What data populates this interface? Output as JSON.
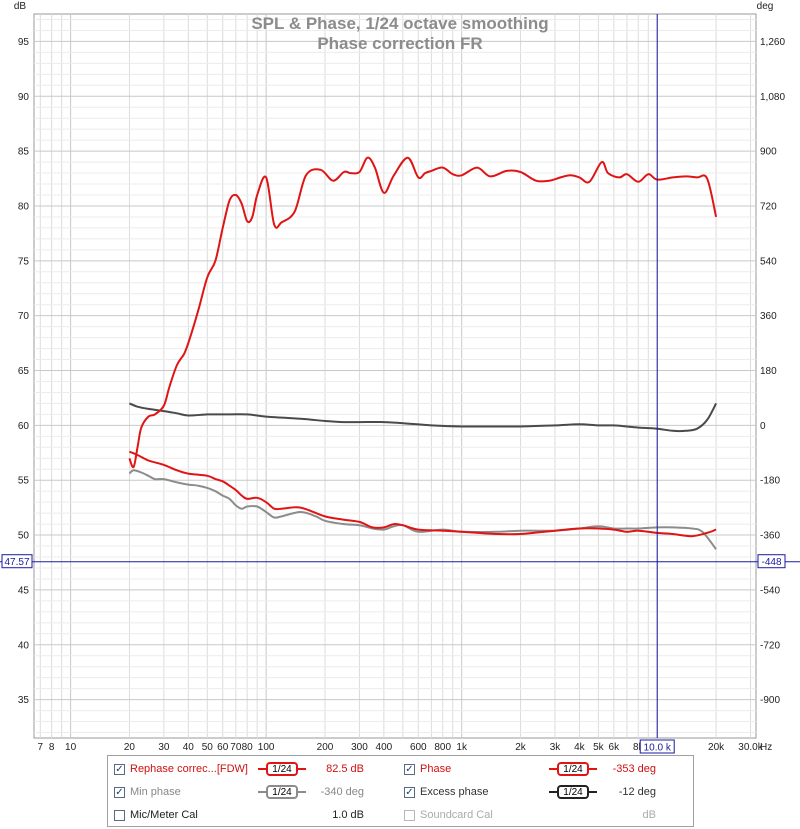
{
  "chart_data": {
    "type": "line",
    "title": "SPL & Phase, 1/24 octave smoothing",
    "subtitle": "Phase correction FR",
    "left_unit": "dB",
    "right_unit": "deg",
    "x_unit": "Hz",
    "x_scale": "log",
    "xlim": [
      6.5,
      32000
    ],
    "ylim_left": [
      31.5,
      97.5
    ],
    "ylim_right": [
      -1026,
      1350
    ],
    "x_ticks": [
      {
        "v": 7,
        "t": "7"
      },
      {
        "v": 8,
        "t": "8"
      },
      {
        "v": 10,
        "t": "10"
      },
      {
        "v": 20,
        "t": "20"
      },
      {
        "v": 30,
        "t": "30"
      },
      {
        "v": 40,
        "t": "40"
      },
      {
        "v": 50,
        "t": "50"
      },
      {
        "v": 60,
        "t": "60"
      },
      {
        "v": 70,
        "t": "70"
      },
      {
        "v": 80,
        "t": "80"
      },
      {
        "v": 100,
        "t": "100"
      },
      {
        "v": 200,
        "t": "200"
      },
      {
        "v": 300,
        "t": "300"
      },
      {
        "v": 400,
        "t": "400"
      },
      {
        "v": 600,
        "t": "600"
      },
      {
        "v": 800,
        "t": "800"
      },
      {
        "v": 1000,
        "t": "1k"
      },
      {
        "v": 2000,
        "t": "2k"
      },
      {
        "v": 3000,
        "t": "3k"
      },
      {
        "v": 4000,
        "t": "4k"
      },
      {
        "v": 5000,
        "t": "5k"
      },
      {
        "v": 6000,
        "t": "6k"
      },
      {
        "v": 8000,
        "t": "8k"
      },
      {
        "v": 20000,
        "t": "20k"
      },
      {
        "v": 30000,
        "t": "30.0k"
      }
    ],
    "y_ticks_left": [
      "35",
      "40",
      "45",
      "50",
      "55",
      "60",
      "65",
      "70",
      "75",
      "80",
      "85",
      "90",
      "95"
    ],
    "y_ticks_right": [
      "-900",
      "-720",
      "-540",
      "-360",
      "-180",
      "0",
      "180",
      "360",
      "540",
      "720",
      "900",
      "1,080",
      "1,260"
    ],
    "cursor": {
      "x": 10000,
      "x_label": "10.0 k",
      "y_left": 47.57,
      "y_left_label": "47.57",
      "y_right_label": "-448"
    },
    "series": [
      {
        "name": "Rephase correc...[FDW]",
        "axis": "left",
        "color": "#e01414",
        "x": [
          20,
          21,
          22,
          23,
          25,
          27,
          30,
          32,
          35,
          38,
          40,
          45,
          50,
          55,
          60,
          65,
          70,
          75,
          80,
          85,
          90,
          100,
          110,
          120,
          140,
          160,
          190,
          220,
          250,
          270,
          300,
          330,
          360,
          400,
          450,
          530,
          600,
          650,
          700,
          800,
          900,
          1000,
          1200,
          1400,
          1700,
          2000,
          2400,
          2800,
          3200,
          3600,
          4000,
          4500,
          5200,
          5600,
          6400,
          7000,
          8000,
          9000,
          10000,
          12000,
          14000,
          16000,
          18000,
          20000
        ],
        "y": [
          57.0,
          56.2,
          58.0,
          59.8,
          60.8,
          61.0,
          61.8,
          63.5,
          65.5,
          66.5,
          67.5,
          70.5,
          73.5,
          75.0,
          78.0,
          80.5,
          81.0,
          80.2,
          78.6,
          79.0,
          81.0,
          82.6,
          78.3,
          78.5,
          79.5,
          82.8,
          83.3,
          82.3,
          83.1,
          83.0,
          83.1,
          84.4,
          83.5,
          81.2,
          82.8,
          84.4,
          82.6,
          83.0,
          83.2,
          83.5,
          82.9,
          82.8,
          83.5,
          82.7,
          83.2,
          83.1,
          82.3,
          82.3,
          82.6,
          82.8,
          82.6,
          82.2,
          84.0,
          83.0,
          82.6,
          82.9,
          82.2,
          82.9,
          82.4,
          82.6,
          82.7,
          82.6,
          82.5,
          79.0
        ]
      },
      {
        "name": "Phase",
        "axis": "left",
        "color": "#e01414",
        "x": [
          20,
          22,
          25,
          30,
          35,
          40,
          50,
          55,
          60,
          65,
          70,
          75,
          80,
          90,
          100,
          110,
          120,
          150,
          200,
          250,
          300,
          350,
          400,
          450,
          500,
          600,
          800,
          1000,
          1500,
          2000,
          3000,
          4000,
          5000,
          6000,
          7000,
          8000,
          10000,
          12000,
          15000,
          18000,
          20000
        ],
        "y": [
          57.6,
          57.3,
          56.8,
          56.4,
          55.9,
          55.6,
          55.4,
          55.1,
          54.9,
          54.5,
          54.1,
          53.6,
          53.3,
          53.4,
          53.0,
          52.4,
          52.4,
          52.5,
          51.7,
          51.4,
          51.2,
          50.7,
          50.7,
          51.0,
          50.9,
          50.5,
          50.4,
          50.3,
          50.1,
          50.1,
          50.4,
          50.6,
          50.6,
          50.5,
          50.3,
          50.4,
          50.2,
          50.1,
          49.9,
          50.2,
          50.5
        ]
      },
      {
        "name": "Min phase",
        "axis": "left",
        "color": "#8c8c8c",
        "x": [
          20,
          21,
          23,
          25,
          27,
          30,
          35,
          40,
          45,
          50,
          55,
          60,
          65,
          70,
          75,
          80,
          90,
          100,
          110,
          120,
          150,
          180,
          200,
          250,
          300,
          350,
          400,
          450,
          500,
          600,
          800,
          1000,
          1500,
          2000,
          3000,
          4000,
          5000,
          6000,
          7000,
          8000,
          10000,
          12000,
          15000,
          17000,
          20000
        ],
        "y": [
          55.6,
          55.9,
          55.7,
          55.4,
          55.1,
          55.1,
          54.8,
          54.6,
          54.5,
          54.3,
          54.0,
          53.6,
          53.3,
          52.7,
          52.4,
          52.6,
          52.6,
          52.1,
          51.6,
          51.7,
          52.1,
          51.7,
          51.3,
          51.0,
          50.9,
          50.6,
          50.5,
          50.8,
          50.9,
          50.3,
          50.5,
          50.3,
          50.3,
          50.4,
          50.4,
          50.6,
          50.8,
          50.6,
          50.6,
          50.6,
          50.7,
          50.7,
          50.6,
          50.3,
          48.7
        ]
      },
      {
        "name": "Excess phase",
        "axis": "left",
        "color": "#4a4a4a",
        "x": [
          20,
          22,
          25,
          30,
          35,
          40,
          50,
          60,
          80,
          100,
          150,
          200,
          250,
          300,
          400,
          500,
          700,
          1000,
          1500,
          2000,
          3000,
          4000,
          5000,
          6000,
          7000,
          8000,
          10000,
          12000,
          14000,
          16000,
          18000,
          20000
        ],
        "y": [
          62.0,
          61.7,
          61.5,
          61.3,
          61.1,
          60.9,
          61.0,
          61.0,
          61.0,
          60.8,
          60.6,
          60.4,
          60.3,
          60.3,
          60.3,
          60.2,
          60.0,
          59.9,
          59.9,
          59.9,
          60.0,
          60.1,
          60.0,
          60.0,
          59.9,
          59.8,
          59.7,
          59.5,
          59.5,
          59.7,
          60.5,
          62.0
        ]
      }
    ]
  },
  "legend": {
    "row1": {
      "a_label": "Rephase correc...[FDW]",
      "a_smooth": "1/24",
      "a_value": "82.5 dB",
      "b_label": "Phase",
      "b_smooth": "1/24",
      "b_value": "-353 deg"
    },
    "row2": {
      "a_label": "Min phase",
      "a_smooth": "1/24",
      "a_value": "-340 deg",
      "b_label": "Excess phase",
      "b_smooth": "1/24",
      "b_value": "-12 deg"
    },
    "row3": {
      "a_label": "Mic/Meter Cal",
      "a_value": "1.0 dB",
      "b_label": "Soundcard Cal",
      "b_value": "dB"
    },
    "check_mark": "✓"
  }
}
